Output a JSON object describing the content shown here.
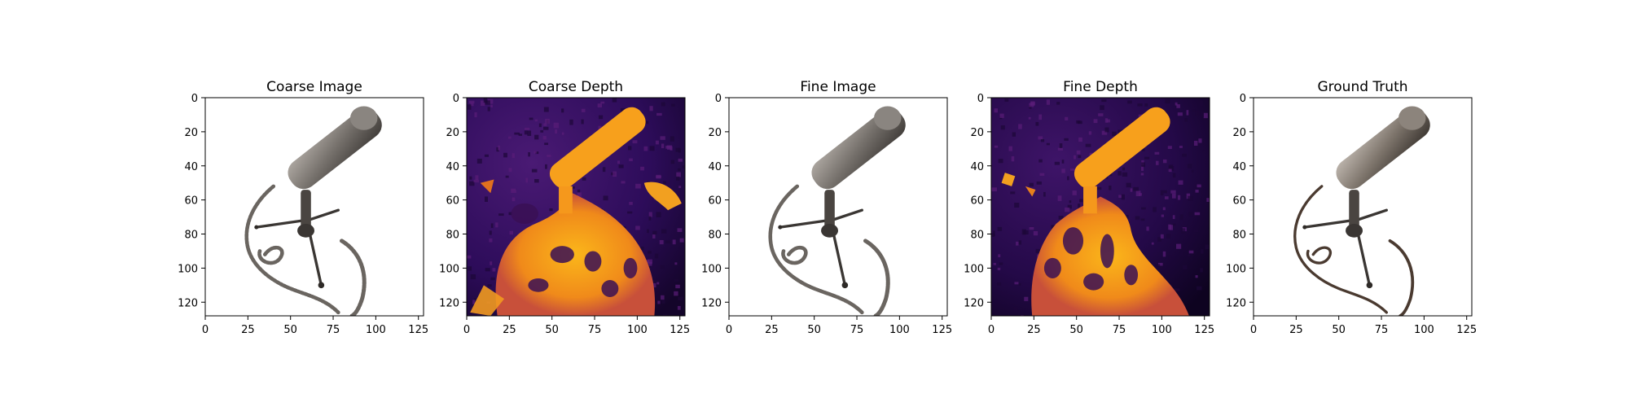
{
  "chart_data": [
    {
      "type": "image",
      "title": "Coarse Image",
      "kind": "rgb",
      "xlim": [
        0,
        128
      ],
      "ylim": [
        128,
        0
      ],
      "xticks": [
        0,
        25,
        50,
        75,
        100,
        125
      ],
      "yticks": [
        0,
        20,
        40,
        60,
        80,
        100,
        120
      ],
      "grid": false
    },
    {
      "type": "image",
      "title": "Coarse Depth",
      "kind": "depth",
      "colormap": "inferno",
      "xlim": [
        0,
        128
      ],
      "ylim": [
        128,
        0
      ],
      "xticks": [
        0,
        25,
        50,
        75,
        100,
        125
      ],
      "yticks": [
        0,
        20,
        40,
        60,
        80,
        100,
        120
      ],
      "grid": false
    },
    {
      "type": "image",
      "title": "Fine Image",
      "kind": "rgb",
      "xlim": [
        0,
        128
      ],
      "ylim": [
        128,
        0
      ],
      "xticks": [
        0,
        25,
        50,
        75,
        100,
        125
      ],
      "yticks": [
        0,
        20,
        40,
        60,
        80,
        100,
        120
      ],
      "grid": false
    },
    {
      "type": "image",
      "title": "Fine Depth",
      "kind": "depth",
      "colormap": "inferno",
      "xlim": [
        0,
        128
      ],
      "ylim": [
        128,
        0
      ],
      "xticks": [
        0,
        25,
        50,
        75,
        100,
        125
      ],
      "yticks": [
        0,
        20,
        40,
        60,
        80,
        100,
        120
      ],
      "grid": false
    },
    {
      "type": "image",
      "title": "Ground Truth",
      "kind": "rgb",
      "xlim": [
        0,
        128
      ],
      "ylim": [
        128,
        0
      ],
      "xticks": [
        0,
        25,
        50,
        75,
        100,
        125
      ],
      "yticks": [
        0,
        20,
        40,
        60,
        80,
        100,
        120
      ],
      "grid": false
    }
  ],
  "colors": {
    "depth_background": "#2a0a52",
    "depth_mid": "#7a1f6a",
    "depth_near": "#f7a01c",
    "depth_far_dark": "#12041f",
    "mic_body": "#6e6a66",
    "mic_highlight": "#a8a29c",
    "mic_dark": "#3c3835",
    "axes": "#000000"
  }
}
